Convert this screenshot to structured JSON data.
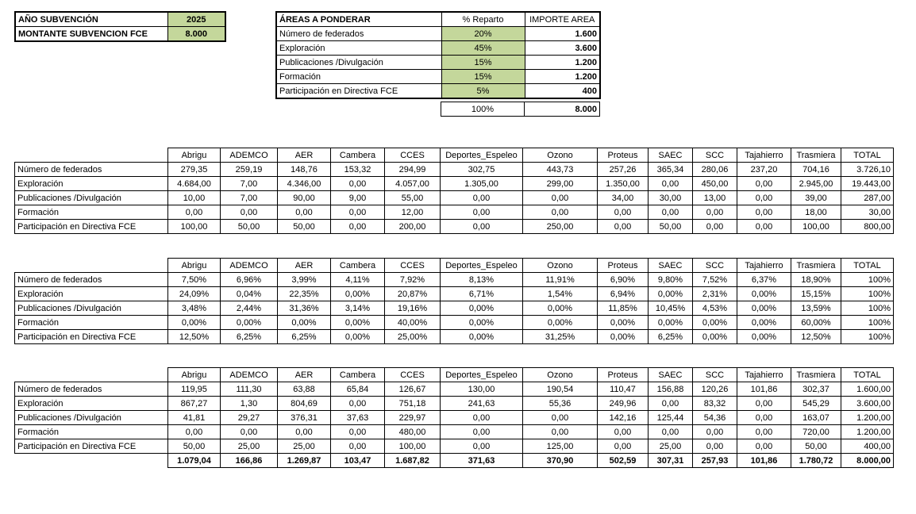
{
  "subvencion": {
    "rows": [
      {
        "label": "AÑO SUBVENCIÓN",
        "value": "2025"
      },
      {
        "label": "MONTANTE SUBVENCION FCE",
        "value": "8.000"
      }
    ]
  },
  "areas": {
    "title": "ÁREAS A PONDERAR",
    "col_reparto": "% Reparto",
    "col_importe": "IMPORTE AREA",
    "rows": [
      {
        "label": "Número de federados",
        "reparto": "20%",
        "importe": "1.600"
      },
      {
        "label": "Exploración",
        "reparto": "45%",
        "importe": "3.600"
      },
      {
        "label": "Publicaciones /Divulgación",
        "reparto": "15%",
        "importe": "1.200"
      },
      {
        "label": "Formación",
        "reparto": "15%",
        "importe": "1.200"
      },
      {
        "label": "Participación en Directiva FCE",
        "reparto": "5%",
        "importe": "400"
      }
    ],
    "total": {
      "reparto": "100%",
      "importe": "8.000"
    }
  },
  "colors": {
    "input_green": "#c4d79b",
    "border": "#000000"
  },
  "matrix": {
    "raw": {
      "columns": [
        "Abrigu",
        "ADEMCO",
        "AER",
        "Cambera",
        "CCES",
        "Deportes_Espeleo",
        "Ozono",
        "Proteus",
        "SAEC",
        "SCC",
        "Tajahierro",
        "Trasmiera",
        "TOTAL"
      ],
      "rows": [
        {
          "label": "Número de federados",
          "values": [
            "279,35",
            "259,19",
            "148,76",
            "153,32",
            "294,99",
            "302,75",
            "443,73",
            "257,26",
            "365,34",
            "280,06",
            "237,20",
            "704,16",
            "3.726,10"
          ]
        },
        {
          "label": "Exploración",
          "values": [
            "4.684,00",
            "7,00",
            "4.346,00",
            "0,00",
            "4.057,00",
            "1.305,00",
            "299,00",
            "1.350,00",
            "0,00",
            "450,00",
            "0,00",
            "2.945,00",
            "19.443,00"
          ]
        },
        {
          "label": "Publicaciones /Divulgación",
          "values": [
            "10,00",
            "7,00",
            "90,00",
            "9,00",
            "55,00",
            "0,00",
            "0,00",
            "34,00",
            "30,00",
            "13,00",
            "0,00",
            "39,00",
            "287,00"
          ]
        },
        {
          "label": "Formación",
          "values": [
            "0,00",
            "0,00",
            "0,00",
            "0,00",
            "12,00",
            "0,00",
            "0,00",
            "0,00",
            "0,00",
            "0,00",
            "0,00",
            "18,00",
            "30,00"
          ]
        },
        {
          "label": "Participación en Directiva FCE",
          "values": [
            "100,00",
            "50,00",
            "50,00",
            "0,00",
            "200,00",
            "0,00",
            "250,00",
            "0,00",
            "50,00",
            "0,00",
            "0,00",
            "100,00",
            "800,00"
          ]
        }
      ],
      "totals": null
    },
    "pct": {
      "columns": [
        "Abrigu",
        "ADEMCO",
        "AER",
        "Cambera",
        "CCES",
        "Deportes_Espeleo",
        "Ozono",
        "Proteus",
        "SAEC",
        "SCC",
        "Tajahierro",
        "Trasmiera",
        "TOTAL"
      ],
      "rows": [
        {
          "label": "Número de federados",
          "values": [
            "7,50%",
            "6,96%",
            "3,99%",
            "4,11%",
            "7,92%",
            "8,13%",
            "11,91%",
            "6,90%",
            "9,80%",
            "7,52%",
            "6,37%",
            "18,90%",
            "100%"
          ]
        },
        {
          "label": "Exploración",
          "values": [
            "24,09%",
            "0,04%",
            "22,35%",
            "0,00%",
            "20,87%",
            "6,71%",
            "1,54%",
            "6,94%",
            "0,00%",
            "2,31%",
            "0,00%",
            "15,15%",
            "100%"
          ]
        },
        {
          "label": "Publicaciones /Divulgación",
          "values": [
            "3,48%",
            "2,44%",
            "31,36%",
            "3,14%",
            "19,16%",
            "0,00%",
            "0,00%",
            "11,85%",
            "10,45%",
            "4,53%",
            "0,00%",
            "13,59%",
            "100%"
          ]
        },
        {
          "label": "Formación",
          "values": [
            "0,00%",
            "0,00%",
            "0,00%",
            "0,00%",
            "40,00%",
            "0,00%",
            "0,00%",
            "0,00%",
            "0,00%",
            "0,00%",
            "0,00%",
            "60,00%",
            "100%"
          ]
        },
        {
          "label": "Participación en Directiva FCE",
          "values": [
            "12,50%",
            "6,25%",
            "6,25%",
            "0,00%",
            "25,00%",
            "0,00%",
            "31,25%",
            "0,00%",
            "6,25%",
            "0,00%",
            "0,00%",
            "12,50%",
            "100%"
          ]
        }
      ],
      "totals": null
    },
    "dist": {
      "columns": [
        "Abrigu",
        "ADEMCO",
        "AER",
        "Cambera",
        "CCES",
        "Deportes_Espeleo",
        "Ozono",
        "Proteus",
        "SAEC",
        "SCC",
        "Tajahierro",
        "Trasmiera",
        "TOTAL"
      ],
      "rows": [
        {
          "label": "Número de federados",
          "values": [
            "119,95",
            "111,30",
            "63,88",
            "65,84",
            "126,67",
            "130,00",
            "190,54",
            "110,47",
            "156,88",
            "120,26",
            "101,86",
            "302,37",
            "1.600,00"
          ]
        },
        {
          "label": "Exploración",
          "values": [
            "867,27",
            "1,30",
            "804,69",
            "0,00",
            "751,18",
            "241,63",
            "55,36",
            "249,96",
            "0,00",
            "83,32",
            "0,00",
            "545,29",
            "3.600,00"
          ]
        },
        {
          "label": "Publicaciones /Divulgación",
          "values": [
            "41,81",
            "29,27",
            "376,31",
            "37,63",
            "229,97",
            "0,00",
            "0,00",
            "142,16",
            "125,44",
            "54,36",
            "0,00",
            "163,07",
            "1.200,00"
          ]
        },
        {
          "label": "Formación",
          "values": [
            "0,00",
            "0,00",
            "0,00",
            "0,00",
            "480,00",
            "0,00",
            "0,00",
            "0,00",
            "0,00",
            "0,00",
            "0,00",
            "720,00",
            "1.200,00"
          ]
        },
        {
          "label": "Participación en Directiva FCE",
          "values": [
            "50,00",
            "25,00",
            "25,00",
            "0,00",
            "100,00",
            "0,00",
            "125,00",
            "0,00",
            "25,00",
            "0,00",
            "0,00",
            "50,00",
            "400,00"
          ]
        }
      ],
      "totals": [
        "1.079,04",
        "166,86",
        "1.269,87",
        "103,47",
        "1.687,82",
        "371,63",
        "370,90",
        "502,59",
        "307,31",
        "257,93",
        "101,86",
        "1.780,72",
        "8.000,00"
      ]
    }
  }
}
